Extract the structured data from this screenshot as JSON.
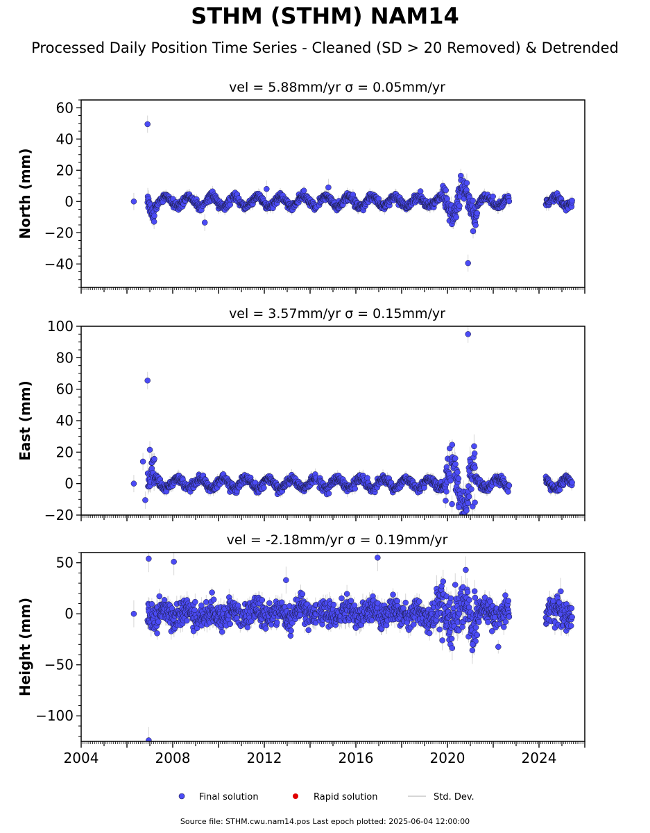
{
  "title": "STHM (STHM) NAM14",
  "subtitle": "Processed Daily Position Time Series - Cleaned (SD > 20 Removed) & Detrended",
  "footer": "Source file: STHM.cwu.nam14.pos  Last epoch plotted: 2025-06-04 12:00:00",
  "legend": {
    "final_label": "Final solution",
    "rapid_label": "Rapid solution",
    "std_label": "Std. Dev.",
    "final_color": "#4b4bf5",
    "rapid_color": "#e00000",
    "std_color": "#c8c8c8"
  },
  "chart_data": [
    {
      "type": "scatter",
      "component": "north",
      "title": "vel = 5.88mm/yr   σ = 0.05mm/yr",
      "ylabel": "North (mm)",
      "xlim": [
        2004,
        2026
      ],
      "ylim": [
        -55,
        65
      ],
      "yticks": [
        -40,
        -20,
        0,
        20,
        40,
        60
      ],
      "yminor": 5,
      "xtick_labels_visible": false,
      "model": {
        "amplitude": 4,
        "phase": 0.55,
        "noise": 1.2,
        "sd": 2.5,
        "segments": [
          [
            2006.9,
            2014.3
          ],
          [
            2014.4,
            2022.7
          ],
          [
            2024.3,
            2025.45
          ]
        ],
        "extra_amp": [
          [
            2006.6,
            2007.2,
            2.5
          ],
          [
            2019.8,
            2021.3,
            3
          ]
        ]
      },
      "outliers": [
        {
          "x": 2006.3,
          "y": 0
        },
        {
          "x": 2006.9,
          "y": 49.5
        },
        {
          "x": 2020.9,
          "y": -39.5
        },
        {
          "x": 2009.4,
          "y": -13.5
        },
        {
          "x": 2012.1,
          "y": 8
        },
        {
          "x": 2014.8,
          "y": 9
        }
      ]
    },
    {
      "type": "scatter",
      "component": "east",
      "title": "vel = 3.57mm/yr   σ = 0.15mm/yr",
      "ylabel": "East (mm)",
      "xlim": [
        2004,
        2026
      ],
      "ylim": [
        -20,
        100
      ],
      "yticks": [
        -20,
        0,
        20,
        40,
        60,
        80,
        100
      ],
      "yminor": 5,
      "xtick_labels_visible": false,
      "model": {
        "amplitude": 4,
        "phase": 0.05,
        "noise": 1.3,
        "sd": 2.5,
        "segments": [
          [
            2006.9,
            2014.3
          ],
          [
            2014.4,
            2022.7
          ],
          [
            2024.3,
            2025.45
          ]
        ],
        "extra_amp": [
          [
            2006.6,
            2007.2,
            3
          ],
          [
            2019.9,
            2021.2,
            5
          ]
        ]
      },
      "outliers": [
        {
          "x": 2006.3,
          "y": 0
        },
        {
          "x": 2006.9,
          "y": 65.5
        },
        {
          "x": 2020.9,
          "y": 95
        },
        {
          "x": 2007.0,
          "y": 21.5
        },
        {
          "x": 2006.7,
          "y": 14
        },
        {
          "x": 2006.8,
          "y": -10.5
        },
        {
          "x": 2020.5,
          "y": -15
        },
        {
          "x": 2020.2,
          "y": -13
        },
        {
          "x": 2021.1,
          "y": -14.5
        },
        {
          "x": 2021.2,
          "y": -12
        }
      ]
    },
    {
      "type": "scatter",
      "component": "height",
      "title": "vel = -2.18mm/yr   σ = 0.19mm/yr",
      "ylabel": "Height (mm)",
      "xlim": [
        2004,
        2026
      ],
      "ylim": [
        -125,
        60
      ],
      "yticks": [
        -100,
        -50,
        0,
        50
      ],
      "yminor": 10,
      "xticks": [
        2004,
        2008,
        2012,
        2016,
        2020,
        2024
      ],
      "xtick_labels_visible": true,
      "model": {
        "amplitude": 5,
        "phase": 0.6,
        "noise": 6,
        "sd": 6,
        "segments": [
          [
            2006.9,
            2014.3
          ],
          [
            2014.4,
            2022.7
          ],
          [
            2024.3,
            2025.45
          ]
        ],
        "extra_amp": [
          [
            2019.5,
            2021.3,
            2.3
          ]
        ]
      },
      "outliers": [
        {
          "x": 2006.3,
          "y": 0
        },
        {
          "x": 2006.95,
          "y": 54
        },
        {
          "x": 2006.95,
          "y": -124
        },
        {
          "x": 2008.05,
          "y": 51
        },
        {
          "x": 2012.95,
          "y": 33
        },
        {
          "x": 2016.95,
          "y": 55
        },
        {
          "x": 2024.95,
          "y": 22
        },
        {
          "x": 2021.1,
          "y": -30
        },
        {
          "x": 2020.8,
          "y": 43
        }
      ]
    }
  ]
}
